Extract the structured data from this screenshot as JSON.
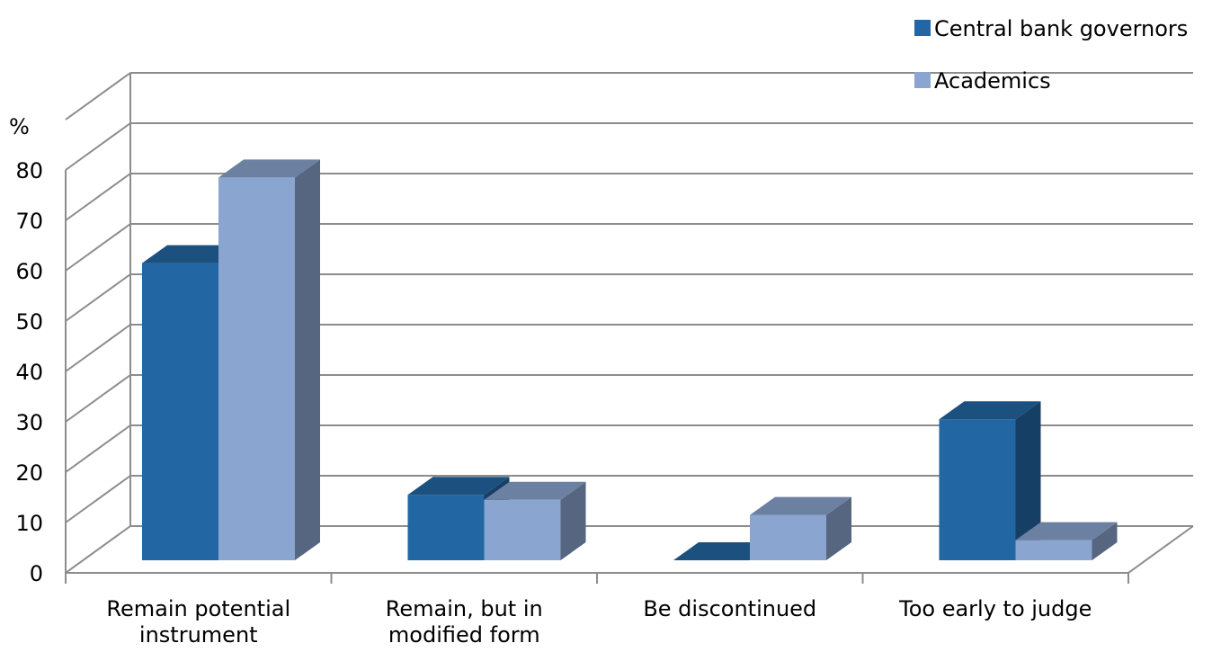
{
  "chart_data": {
    "type": "bar",
    "categories": [
      [
        "Remain potential",
        "instrument"
      ],
      [
        "Remain, but in",
        "modified form"
      ],
      [
        "Be discontinued"
      ],
      [
        "Too early to judge"
      ]
    ],
    "series": [
      {
        "name": "Central bank governors",
        "values": [
          59,
          13,
          0,
          28
        ],
        "color": "#2266a3"
      },
      {
        "name": "Academics",
        "values": [
          76,
          12,
          9,
          4
        ],
        "color": "#8aa5cf"
      }
    ],
    "yunit": "%",
    "ylim": [
      0,
      80
    ],
    "yticks": [
      0,
      10,
      20,
      30,
      40,
      50,
      60,
      70,
      80
    ],
    "grid": true,
    "legend_position": "top-right",
    "three_d": true
  }
}
